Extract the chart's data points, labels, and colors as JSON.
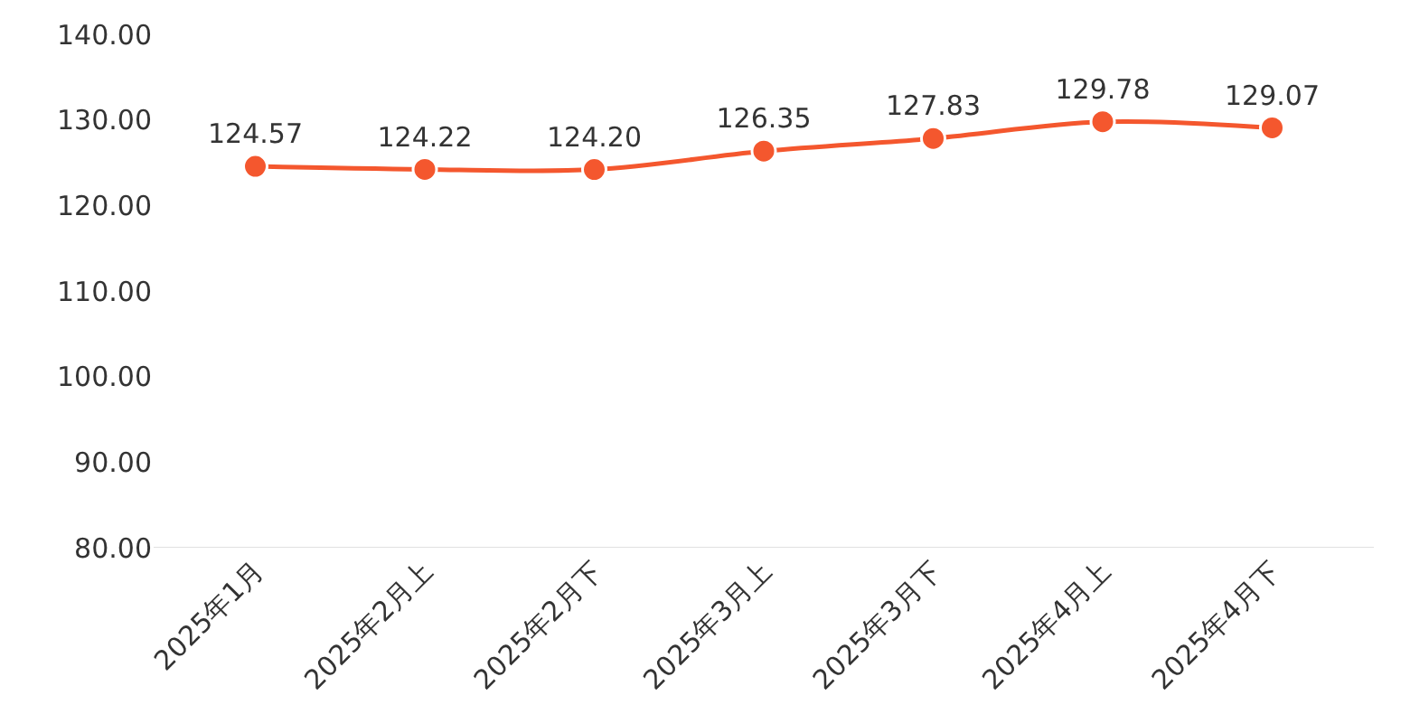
{
  "chart_data": {
    "type": "line",
    "categories": [
      "2025年1月",
      "2025年2月上",
      "2025年2月下",
      "2025年3月上",
      "2025年3月下",
      "2025年4月上",
      "2025年4月下"
    ],
    "series": [
      {
        "color": "#f4572e",
        "values": [
          124.57,
          124.22,
          124.2,
          126.35,
          127.83,
          129.78,
          129.07
        ],
        "value_labels": [
          "124.57",
          "124.22",
          "124.20",
          "126.35",
          "127.83",
          "129.78",
          "129.07"
        ]
      }
    ],
    "ylim": [
      80,
      140
    ],
    "yticks": [
      {
        "value": 80,
        "label": "80.00"
      },
      {
        "value": 90,
        "label": "90.00"
      },
      {
        "value": 100,
        "label": "100.00"
      },
      {
        "value": 110,
        "label": "110.00"
      },
      {
        "value": 120,
        "label": "120.00"
      },
      {
        "value": 130,
        "label": "130.00"
      },
      {
        "value": 140,
        "label": "140.00"
      }
    ],
    "legend": false,
    "marker": "circle",
    "line_style": "solid"
  }
}
